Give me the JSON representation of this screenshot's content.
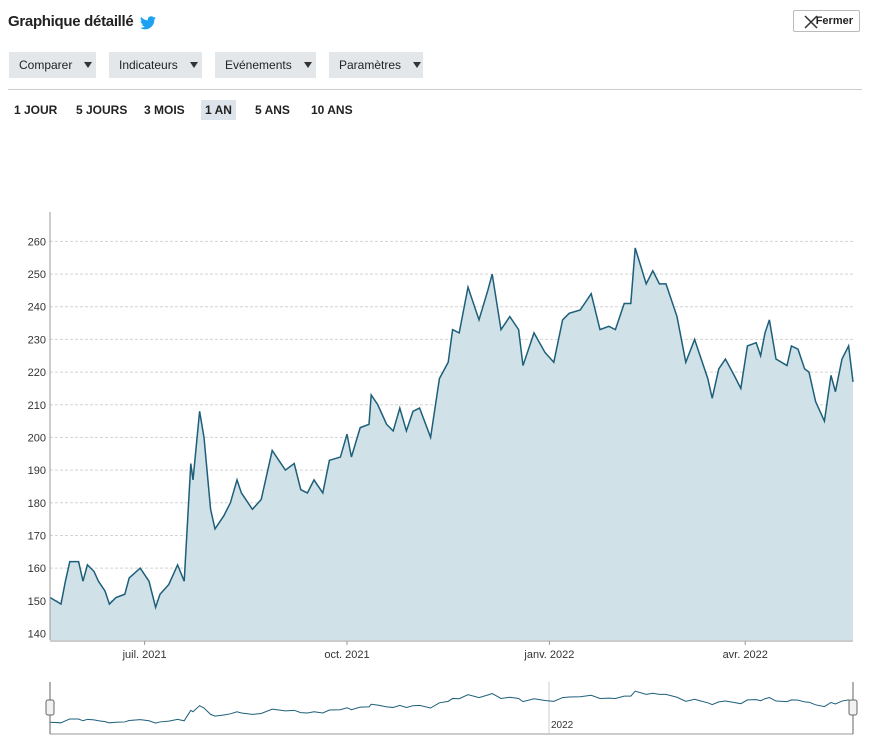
{
  "header": {
    "title": "Graphique détaillé",
    "close": "Fermer"
  },
  "toolbar": [
    "Comparer",
    "Indicateurs",
    "Evénements",
    "Paramètres"
  ],
  "ranges": {
    "options": [
      "1 JOUR",
      "5 JOURS",
      "3 MOIS",
      "1 AN",
      "5 ANS",
      "10 ANS"
    ],
    "selected": 3
  },
  "navigator": {
    "label": "2022"
  },
  "chart_data": {
    "type": "area",
    "x": [
      0,
      5,
      7,
      9,
      13,
      15,
      17,
      20,
      22,
      25,
      27,
      30,
      34,
      36,
      41,
      45,
      48,
      50,
      54,
      58,
      61,
      64,
      65,
      68,
      70,
      73,
      75,
      79,
      82,
      85,
      87,
      92,
      96,
      101,
      104,
      107,
      111,
      114,
      117,
      120,
      124,
      127,
      132,
      135,
      137,
      141,
      145,
      146,
      149,
      153,
      156,
      159,
      162,
      165,
      168,
      173,
      177,
      181,
      183,
      186,
      190,
      195,
      199,
      201,
      205,
      209,
      213,
      215,
      220,
      225,
      229,
      233,
      236,
      241,
      246,
      250,
      254,
      257,
      261,
      264,
      266,
      271,
      274,
      277,
      280,
      285,
      289,
      293,
      295,
      299,
      301,
      304,
      307,
      311,
      314,
      317,
      321,
      323,
      325,
      327,
      330,
      335,
      337,
      340,
      343,
      345,
      348,
      352,
      355,
      357,
      360,
      363,
      365
    ],
    "values": [
      151,
      149,
      156,
      162,
      162,
      156,
      161,
      159,
      156,
      153,
      149,
      151,
      152,
      157,
      160,
      156,
      148,
      152,
      155,
      161,
      156,
      192,
      187,
      208,
      200,
      178,
      172,
      176,
      180,
      187,
      183,
      178,
      181,
      196,
      193,
      190,
      192,
      184,
      183,
      187,
      183,
      193,
      194,
      201,
      194,
      203,
      204,
      213,
      210,
      204,
      202,
      209,
      202,
      208,
      209,
      200,
      218,
      223,
      233,
      232,
      246,
      236,
      245,
      250,
      233,
      237,
      233,
      222,
      232,
      226,
      223,
      236,
      238,
      239,
      244,
      233,
      234,
      233,
      241,
      241,
      258,
      247,
      251,
      247,
      247,
      237,
      223,
      230,
      226,
      218,
      212,
      221,
      224,
      219,
      215,
      228,
      229,
      225,
      232,
      236,
      224,
      222,
      228,
      227,
      221,
      220,
      211,
      205,
      219,
      214,
      224,
      228,
      217
    ],
    "color": "#1d5f7a",
    "fill_color": "#d0e1e7",
    "xlim": [
      0,
      365
    ],
    "xticks": [
      {
        "value": 43,
        "label": "juil. 2021"
      },
      {
        "value": 135,
        "label": "oct. 2021"
      },
      {
        "value": 227,
        "label": "janv. 2022"
      },
      {
        "value": 316,
        "label": "avr. 2022"
      }
    ],
    "ylim": [
      138,
      269
    ],
    "yticks": [
      140,
      150,
      160,
      170,
      180,
      190,
      200,
      210,
      220,
      230,
      240,
      250,
      260
    ],
    "grid": true
  }
}
